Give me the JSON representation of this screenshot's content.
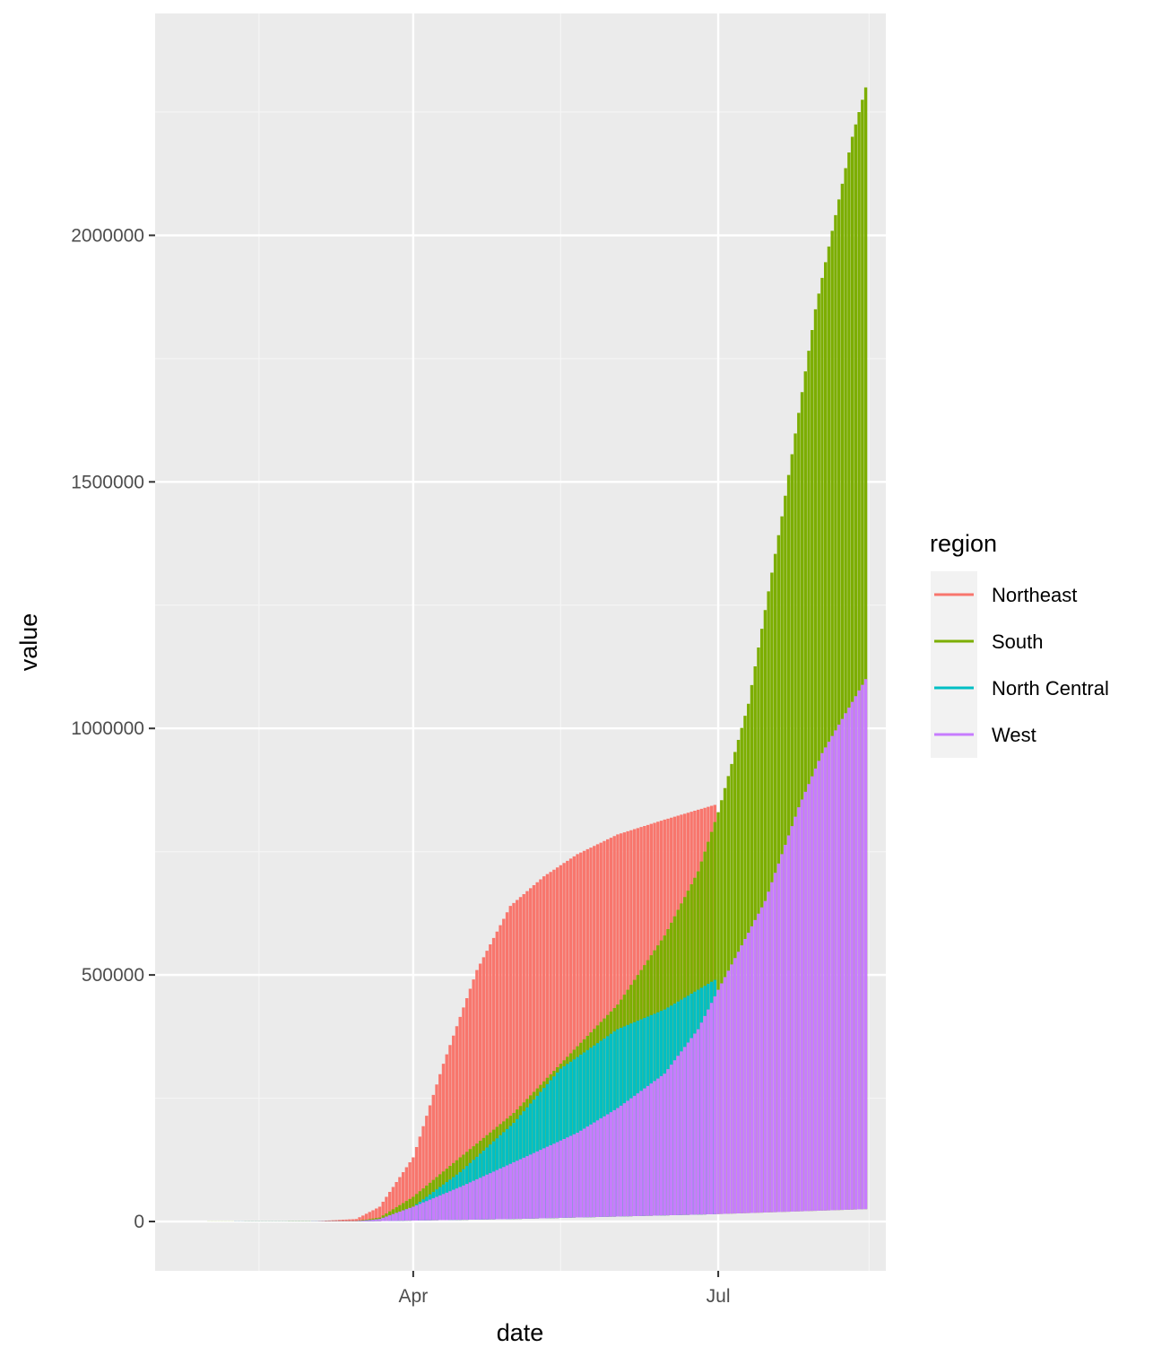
{
  "chart_data": {
    "type": "area",
    "xlabel": "date",
    "ylabel": "value",
    "x_axis": {
      "kind": "date",
      "range": [
        "2020-01-15",
        "2020-08-20"
      ],
      "major_ticks": [
        {
          "label": "Apr",
          "date": "2020-04-01"
        },
        {
          "label": "Jul",
          "date": "2020-07-01"
        }
      ],
      "minor_ticks": [
        "2020-02-15",
        "2020-05-15",
        "2020-08-15"
      ]
    },
    "y_axis": {
      "range": [
        -100000,
        2450000
      ],
      "ticks": [
        0,
        500000,
        1000000,
        1500000,
        2000000
      ],
      "tick_labels": [
        "0",
        "500000",
        "1000000",
        "1500000",
        "2000000"
      ],
      "minor_ticks": [
        250000,
        750000,
        1250000,
        1750000,
        2250000
      ]
    },
    "grid": true,
    "legend": {
      "title": "region",
      "position": "right"
    },
    "render_style": "daily vertical segments from a floor value to each region's cumulative value",
    "series": [
      {
        "name": "Northeast",
        "color": "#F8766D",
        "points": [
          [
            "2020-01-22",
            0
          ],
          [
            "2020-03-01",
            0
          ],
          [
            "2020-03-15",
            5000
          ],
          [
            "2020-03-22",
            30000
          ],
          [
            "2020-04-01",
            130000
          ],
          [
            "2020-04-10",
            320000
          ],
          [
            "2020-04-20",
            510000
          ],
          [
            "2020-04-30",
            640000
          ],
          [
            "2020-05-10",
            700000
          ],
          [
            "2020-05-20",
            745000
          ],
          [
            "2020-06-01",
            785000
          ],
          [
            "2020-06-15",
            815000
          ],
          [
            "2020-06-30",
            845000
          ]
        ]
      },
      {
        "name": "South",
        "color": "#7CAE00",
        "points": [
          [
            "2020-01-22",
            0
          ],
          [
            "2020-03-15",
            1000
          ],
          [
            "2020-03-22",
            8000
          ],
          [
            "2020-04-01",
            50000
          ],
          [
            "2020-04-15",
            130000
          ],
          [
            "2020-05-01",
            220000
          ],
          [
            "2020-05-15",
            320000
          ],
          [
            "2020-06-01",
            440000
          ],
          [
            "2020-06-15",
            580000
          ],
          [
            "2020-06-25",
            710000
          ],
          [
            "2020-07-01",
            830000
          ],
          [
            "2020-07-10",
            1050000
          ],
          [
            "2020-07-20",
            1430000
          ],
          [
            "2020-07-30",
            1850000
          ],
          [
            "2020-08-10",
            2200000
          ],
          [
            "2020-08-14",
            2300000
          ]
        ]
      },
      {
        "name": "North Central",
        "color": "#00BFC4",
        "points": [
          [
            "2020-01-22",
            0
          ],
          [
            "2020-03-15",
            500
          ],
          [
            "2020-03-22",
            5000
          ],
          [
            "2020-04-01",
            30000
          ],
          [
            "2020-04-15",
            100000
          ],
          [
            "2020-05-01",
            200000
          ],
          [
            "2020-05-15",
            310000
          ],
          [
            "2020-06-01",
            390000
          ],
          [
            "2020-06-15",
            430000
          ],
          [
            "2020-06-30",
            490000
          ]
        ]
      },
      {
        "name": "West",
        "color": "#C77CFF",
        "points": [
          [
            "2020-01-22",
            0
          ],
          [
            "2020-03-15",
            500
          ],
          [
            "2020-03-22",
            5000
          ],
          [
            "2020-04-01",
            30000
          ],
          [
            "2020-04-15",
            70000
          ],
          [
            "2020-05-01",
            120000
          ],
          [
            "2020-05-20",
            180000
          ],
          [
            "2020-06-01",
            230000
          ],
          [
            "2020-06-15",
            300000
          ],
          [
            "2020-06-25",
            390000
          ],
          [
            "2020-07-01",
            470000
          ],
          [
            "2020-07-15",
            650000
          ],
          [
            "2020-07-25",
            840000
          ],
          [
            "2020-08-01",
            950000
          ],
          [
            "2020-08-14",
            1100000
          ]
        ]
      }
    ],
    "floor": {
      "comment_free_name": "min",
      "points": [
        [
          "2020-01-22",
          0
        ],
        [
          "2020-03-15",
          0
        ],
        [
          "2020-05-01",
          5000
        ],
        [
          "2020-07-01",
          15000
        ],
        [
          "2020-08-14",
          25000
        ]
      ]
    }
  }
}
